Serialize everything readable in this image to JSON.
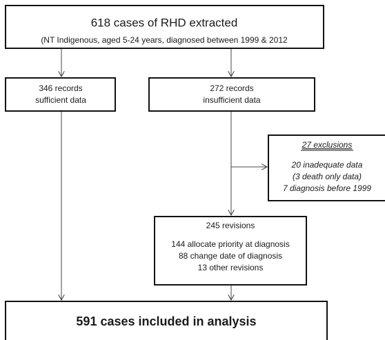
{
  "nodes": [
    {
      "lines": [
        "618 cases of RHD extracted",
        "(NT Indigenous, aged 5-24 years, diagnosed between 1999 & 2012"
      ]
    },
    {
      "lines": [
        "346 records",
        "sufficient data"
      ]
    },
    {
      "lines": [
        "272 records",
        "insufficient data"
      ]
    },
    {
      "lines": [
        "27 exclusions",
        "20 inadequate data",
        "(3 death only data)",
        "7 diagnosis before 1999"
      ]
    },
    {
      "lines": [
        "245 revisions",
        "144 allocate priority at diagnosis",
        "88 change date of diagnosis",
        "13 other revisions"
      ]
    },
    {
      "lines": [
        "591 cases included in analysis"
      ]
    }
  ]
}
